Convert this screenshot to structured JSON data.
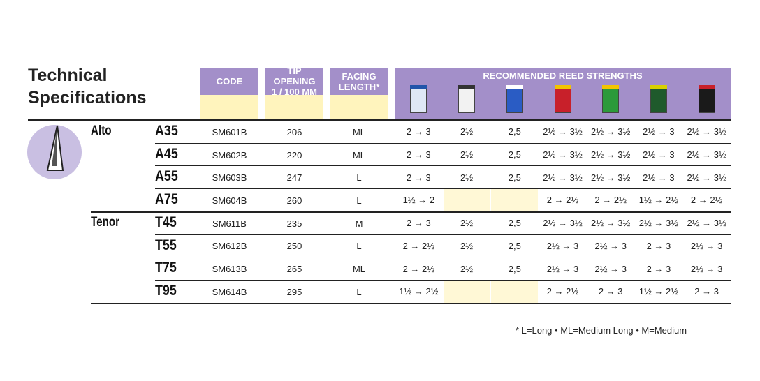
{
  "title": "Technical Specifications",
  "headers": {
    "code": "CODE",
    "tip_opening": [
      "TIP OPENING",
      "1 / 100 MM"
    ],
    "facing_length": [
      "FACING",
      "LENGTH*"
    ],
    "reed_strengths": "RECOMMENDED REED STRENGTHS"
  },
  "groups": [
    {
      "name": "Alto",
      "rows": [
        {
          "model": "A35",
          "code": "SM601B",
          "tip_opening": 206,
          "facing": "ML",
          "strengths": [
            "2 → 3",
            "2½",
            "2,5",
            "2½ → 3½",
            "2½ → 3½",
            "2½ → 3",
            "2½ → 3½"
          ]
        },
        {
          "model": "A45",
          "code": "SM602B",
          "tip_opening": 220,
          "facing": "ML",
          "strengths": [
            "2 → 3",
            "2½",
            "2,5",
            "2½ → 3½",
            "2½ → 3½",
            "2½ → 3",
            "2½ → 3½"
          ]
        },
        {
          "model": "A55",
          "code": "SM603B",
          "tip_opening": 247,
          "facing": "L",
          "strengths": [
            "2 → 3",
            "2½",
            "2,5",
            "2½ → 3½",
            "2½ → 3½",
            "2½ → 3",
            "2½ → 3½"
          ]
        },
        {
          "model": "A75",
          "code": "SM604B",
          "tip_opening": 260,
          "facing": "L",
          "strengths": [
            "1½ → 2",
            null,
            null,
            "2 → 2½",
            "2 → 2½",
            "1½ → 2½",
            "2 → 2½"
          ]
        }
      ]
    },
    {
      "name": "Tenor",
      "rows": [
        {
          "model": "T45",
          "code": "SM611B",
          "tip_opening": 235,
          "facing": "M",
          "strengths": [
            "2 → 3",
            "2½",
            "2,5",
            "2½ → 3½",
            "2½ → 3½",
            "2½ → 3½",
            "2½ → 3½"
          ]
        },
        {
          "model": "T55",
          "code": "SM612B",
          "tip_opening": 250,
          "facing": "L",
          "strengths": [
            "2 → 2½",
            "2½",
            "2,5",
            "2½ → 3",
            "2½ → 3",
            "2 → 3",
            "2½ → 3"
          ]
        },
        {
          "model": "T75",
          "code": "SM613B",
          "tip_opening": 265,
          "facing": "ML",
          "strengths": [
            "2 → 2½",
            "2½",
            "2,5",
            "2½ → 3",
            "2½ → 3",
            "2 → 3",
            "2½ → 3"
          ]
        },
        {
          "model": "T95",
          "code": "SM614B",
          "tip_opening": 295,
          "facing": "L",
          "strengths": [
            "1½ → 2½",
            null,
            null,
            "2 → 2½",
            "2 → 3",
            "1½ → 2½",
            "2 → 3"
          ]
        }
      ]
    }
  ],
  "footnote": "* L=Long • ML=Medium Long • M=Medium"
}
